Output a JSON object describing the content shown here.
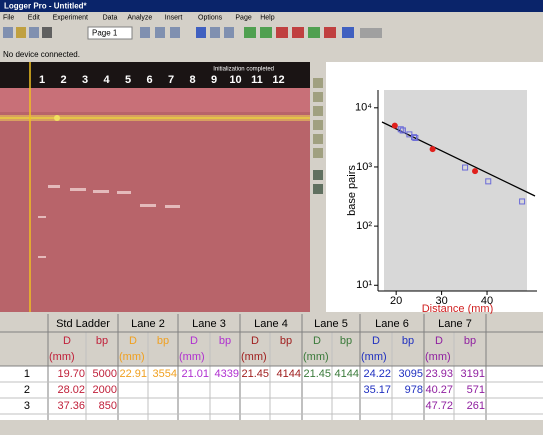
{
  "window": {
    "title": "Logger Pro - Untitled*",
    "menu": [
      "File",
      "Edit",
      "Experiment",
      "Data",
      "Analyze",
      "Insert",
      "Options",
      "Page",
      "Help"
    ],
    "page_selector": "Page 1",
    "status": "No device connected."
  },
  "image": {
    "caption": "Initialization completed",
    "lanes": [
      "1",
      "2",
      "3",
      "4",
      "5",
      "6",
      "7",
      "8",
      "9",
      "10",
      "11",
      "12"
    ]
  },
  "graph": {
    "y_label": "base pairs",
    "x_label": "Distance (mm)",
    "xlim": [
      16,
      51
    ],
    "xticks": [
      20,
      30,
      40
    ],
    "ylim": [
      8,
      20000
    ],
    "log_y": true,
    "yticks": [
      {
        "value": 10,
        "label": "10¹"
      },
      {
        "value": 100,
        "label": "10²"
      },
      {
        "value": 1000,
        "label": "10³"
      },
      {
        "value": 10000,
        "label": "10⁴"
      }
    ],
    "standard_color": "#e0201c",
    "sample_color": "#6a6ad8"
  },
  "table": {
    "groups": [
      "Std Ladder",
      "Lane 2",
      "Lane 3",
      "Lane 4",
      "Lane 5",
      "Lane 6",
      "Lane 7"
    ],
    "group_colors": [
      "#c0203a",
      "#f0a020",
      "#b030d0",
      "#a02020",
      "#3a7a3a",
      "#2030c0",
      "#9020a0"
    ],
    "sub": [
      "D",
      "bp"
    ],
    "unit": "(mm)",
    "rows": [
      {
        "index": "1",
        "cells": [
          "19.70",
          "5000",
          "22.91",
          "3554",
          "21.01",
          "4339",
          "21.45",
          "4144",
          "21.45",
          "4144",
          "24.22",
          "3095",
          "23.93",
          "3191"
        ]
      },
      {
        "index": "2",
        "cells": [
          "28.02",
          "2000",
          null,
          null,
          null,
          null,
          null,
          null,
          null,
          null,
          "35.17",
          "978",
          "40.27",
          "571"
        ]
      },
      {
        "index": "3",
        "cells": [
          "37.36",
          "850",
          null,
          null,
          null,
          null,
          null,
          null,
          null,
          null,
          null,
          null,
          "47.72",
          "261"
        ]
      }
    ]
  }
}
